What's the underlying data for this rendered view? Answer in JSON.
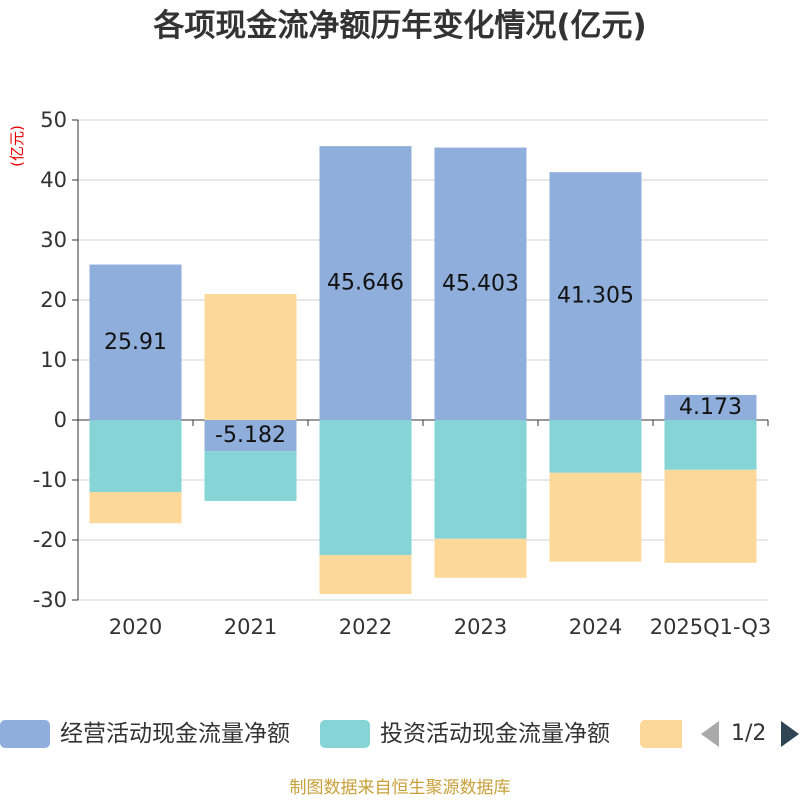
{
  "chart_data": {
    "type": "bar",
    "stacked": true,
    "title": "各项现金流净额历年变化情况(亿元)",
    "ylabel": "(亿元)",
    "xlabel": "",
    "categories": [
      "2020",
      "2021",
      "2022",
      "2023",
      "2024",
      "2025Q1-Q3"
    ],
    "ylim": [
      -30,
      50
    ],
    "yticks": [
      50,
      40,
      30,
      20,
      10,
      0,
      -10,
      -20,
      -30
    ],
    "grid": true,
    "legend_position": "bottom",
    "series": [
      {
        "name": "经营活动现金流量净额",
        "color": "#8FAEDB",
        "data_labels": true,
        "values": [
          25.91,
          -5.182,
          45.646,
          45.403,
          41.305,
          4.173
        ]
      },
      {
        "name": "投资活动现金流量净额",
        "color": "#87D4D6",
        "values": [
          -12.0,
          -8.3,
          -22.5,
          -19.8,
          -8.8,
          -8.3
        ]
      },
      {
        "color": "#FDD89B",
        "values": [
          -5.2,
          21.0,
          -6.5,
          -6.5,
          -14.8,
          -15.5
        ]
      }
    ]
  },
  "legend": {
    "pager_text": "1/2",
    "prev_icon": "chevron-left-icon",
    "next_icon": "chevron-right-icon",
    "prev_color": "#AAAAAA",
    "next_color": "#2F4554"
  },
  "footer": "制图数据来自恒生聚源数据库"
}
